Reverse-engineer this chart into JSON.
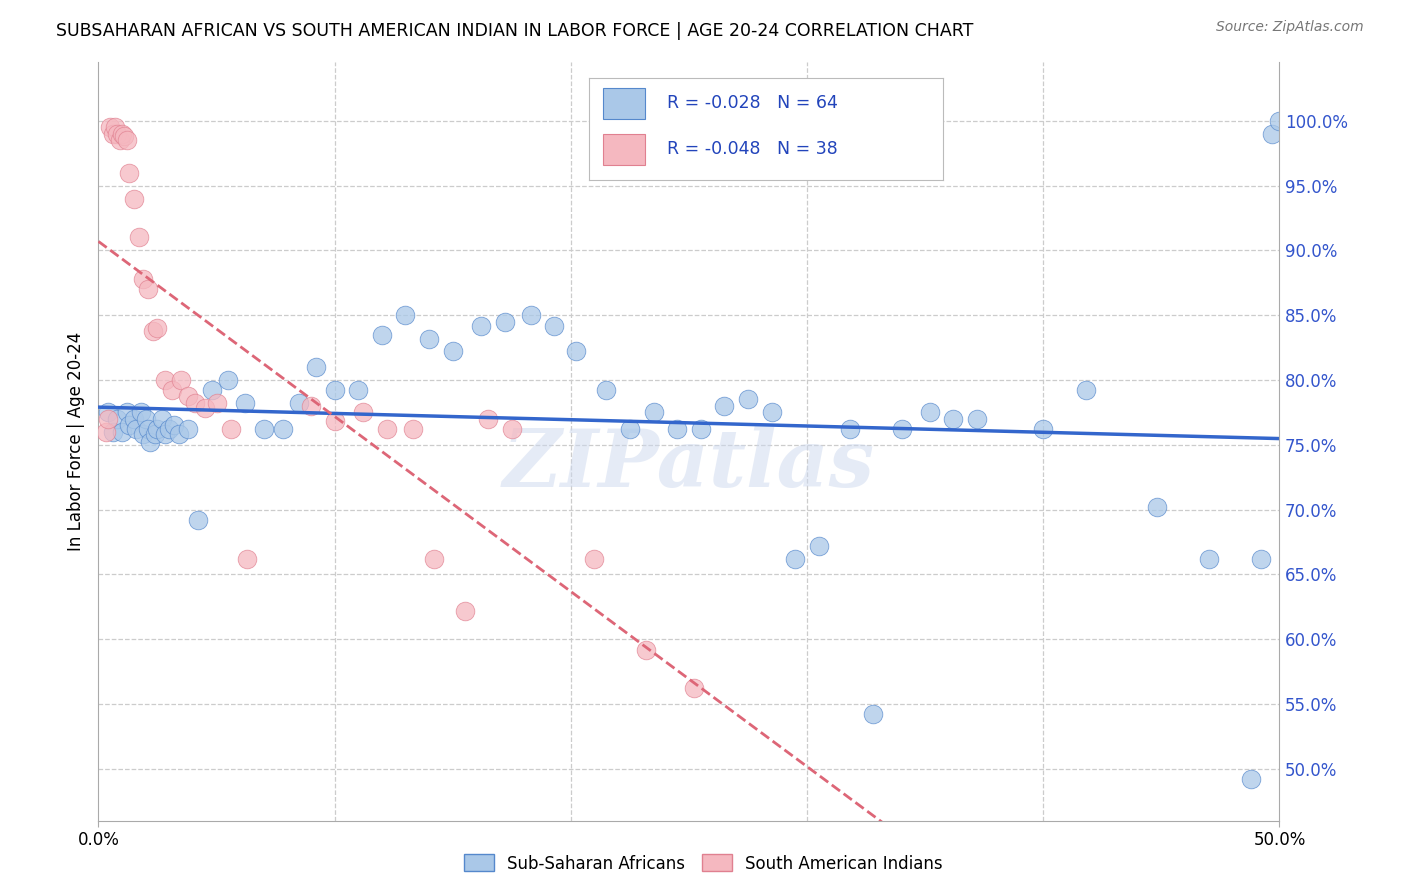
{
  "title": "SUBSAHARAN AFRICAN VS SOUTH AMERICAN INDIAN IN LABOR FORCE | AGE 20-24 CORRELATION CHART",
  "source": "Source: ZipAtlas.com",
  "ylabel": "In Labor Force | Age 20-24",
  "xmin": 0.0,
  "xmax": 0.5,
  "ymin": 0.46,
  "ymax": 1.045,
  "blue_R": "R = -0.028",
  "blue_N": "N = 64",
  "pink_R": "R = -0.048",
  "pink_N": "N = 38",
  "blue_color": "#aac8e8",
  "pink_color": "#f5b8c0",
  "blue_edge_color": "#5588cc",
  "pink_edge_color": "#e08090",
  "blue_line_color": "#3366cc",
  "pink_line_color": "#dd6677",
  "legend_blue_label": "Sub-Saharan Africans",
  "legend_pink_label": "South American Indians",
  "watermark": "ZIPatlas",
  "ytick_vals": [
    0.5,
    0.55,
    0.6,
    0.65,
    0.7,
    0.75,
    0.8,
    0.85,
    0.9,
    0.95,
    1.0
  ],
  "ytick_labels": [
    "50.0%",
    "55.0%",
    "60.0%",
    "65.0%",
    "70.0%",
    "75.0%",
    "80.0%",
    "85.0%",
    "90.0%",
    "95.0%",
    "100.0%"
  ],
  "blue_x": [
    0.004,
    0.006,
    0.008,
    0.01,
    0.012,
    0.013,
    0.015,
    0.016,
    0.018,
    0.019,
    0.02,
    0.021,
    0.022,
    0.024,
    0.025,
    0.027,
    0.028,
    0.03,
    0.032,
    0.034,
    0.038,
    0.042,
    0.048,
    0.055,
    0.062,
    0.07,
    0.078,
    0.085,
    0.092,
    0.1,
    0.11,
    0.12,
    0.13,
    0.14,
    0.15,
    0.162,
    0.172,
    0.183,
    0.193,
    0.202,
    0.215,
    0.225,
    0.235,
    0.245,
    0.255,
    0.265,
    0.275,
    0.285,
    0.295,
    0.305,
    0.318,
    0.328,
    0.34,
    0.352,
    0.362,
    0.372,
    0.4,
    0.418,
    0.448,
    0.47,
    0.488,
    0.492,
    0.497,
    0.5
  ],
  "blue_y": [
    0.775,
    0.76,
    0.77,
    0.76,
    0.775,
    0.765,
    0.77,
    0.762,
    0.775,
    0.758,
    0.77,
    0.762,
    0.752,
    0.758,
    0.762,
    0.77,
    0.758,
    0.762,
    0.765,
    0.758,
    0.762,
    0.692,
    0.792,
    0.8,
    0.782,
    0.762,
    0.762,
    0.782,
    0.81,
    0.792,
    0.792,
    0.835,
    0.85,
    0.832,
    0.822,
    0.842,
    0.845,
    0.85,
    0.842,
    0.822,
    0.792,
    0.762,
    0.775,
    0.762,
    0.762,
    0.78,
    0.785,
    0.775,
    0.662,
    0.672,
    0.762,
    0.542,
    0.762,
    0.775,
    0.77,
    0.77,
    0.762,
    0.792,
    0.702,
    0.662,
    0.492,
    0.662,
    0.99,
    1.0
  ],
  "pink_x": [
    0.003,
    0.004,
    0.005,
    0.006,
    0.007,
    0.008,
    0.009,
    0.01,
    0.011,
    0.012,
    0.013,
    0.015,
    0.017,
    0.019,
    0.021,
    0.023,
    0.025,
    0.028,
    0.031,
    0.035,
    0.038,
    0.041,
    0.045,
    0.05,
    0.056,
    0.063,
    0.09,
    0.1,
    0.112,
    0.122,
    0.133,
    0.142,
    0.155,
    0.165,
    0.175,
    0.21,
    0.232,
    0.252
  ],
  "pink_y": [
    0.76,
    0.77,
    0.995,
    0.99,
    0.995,
    0.99,
    0.985,
    0.99,
    0.988,
    0.985,
    0.96,
    0.94,
    0.91,
    0.878,
    0.87,
    0.838,
    0.84,
    0.8,
    0.792,
    0.8,
    0.788,
    0.782,
    0.778,
    0.782,
    0.762,
    0.662,
    0.78,
    0.768,
    0.775,
    0.762,
    0.762,
    0.662,
    0.622,
    0.77,
    0.762,
    0.662,
    0.592,
    0.562
  ]
}
